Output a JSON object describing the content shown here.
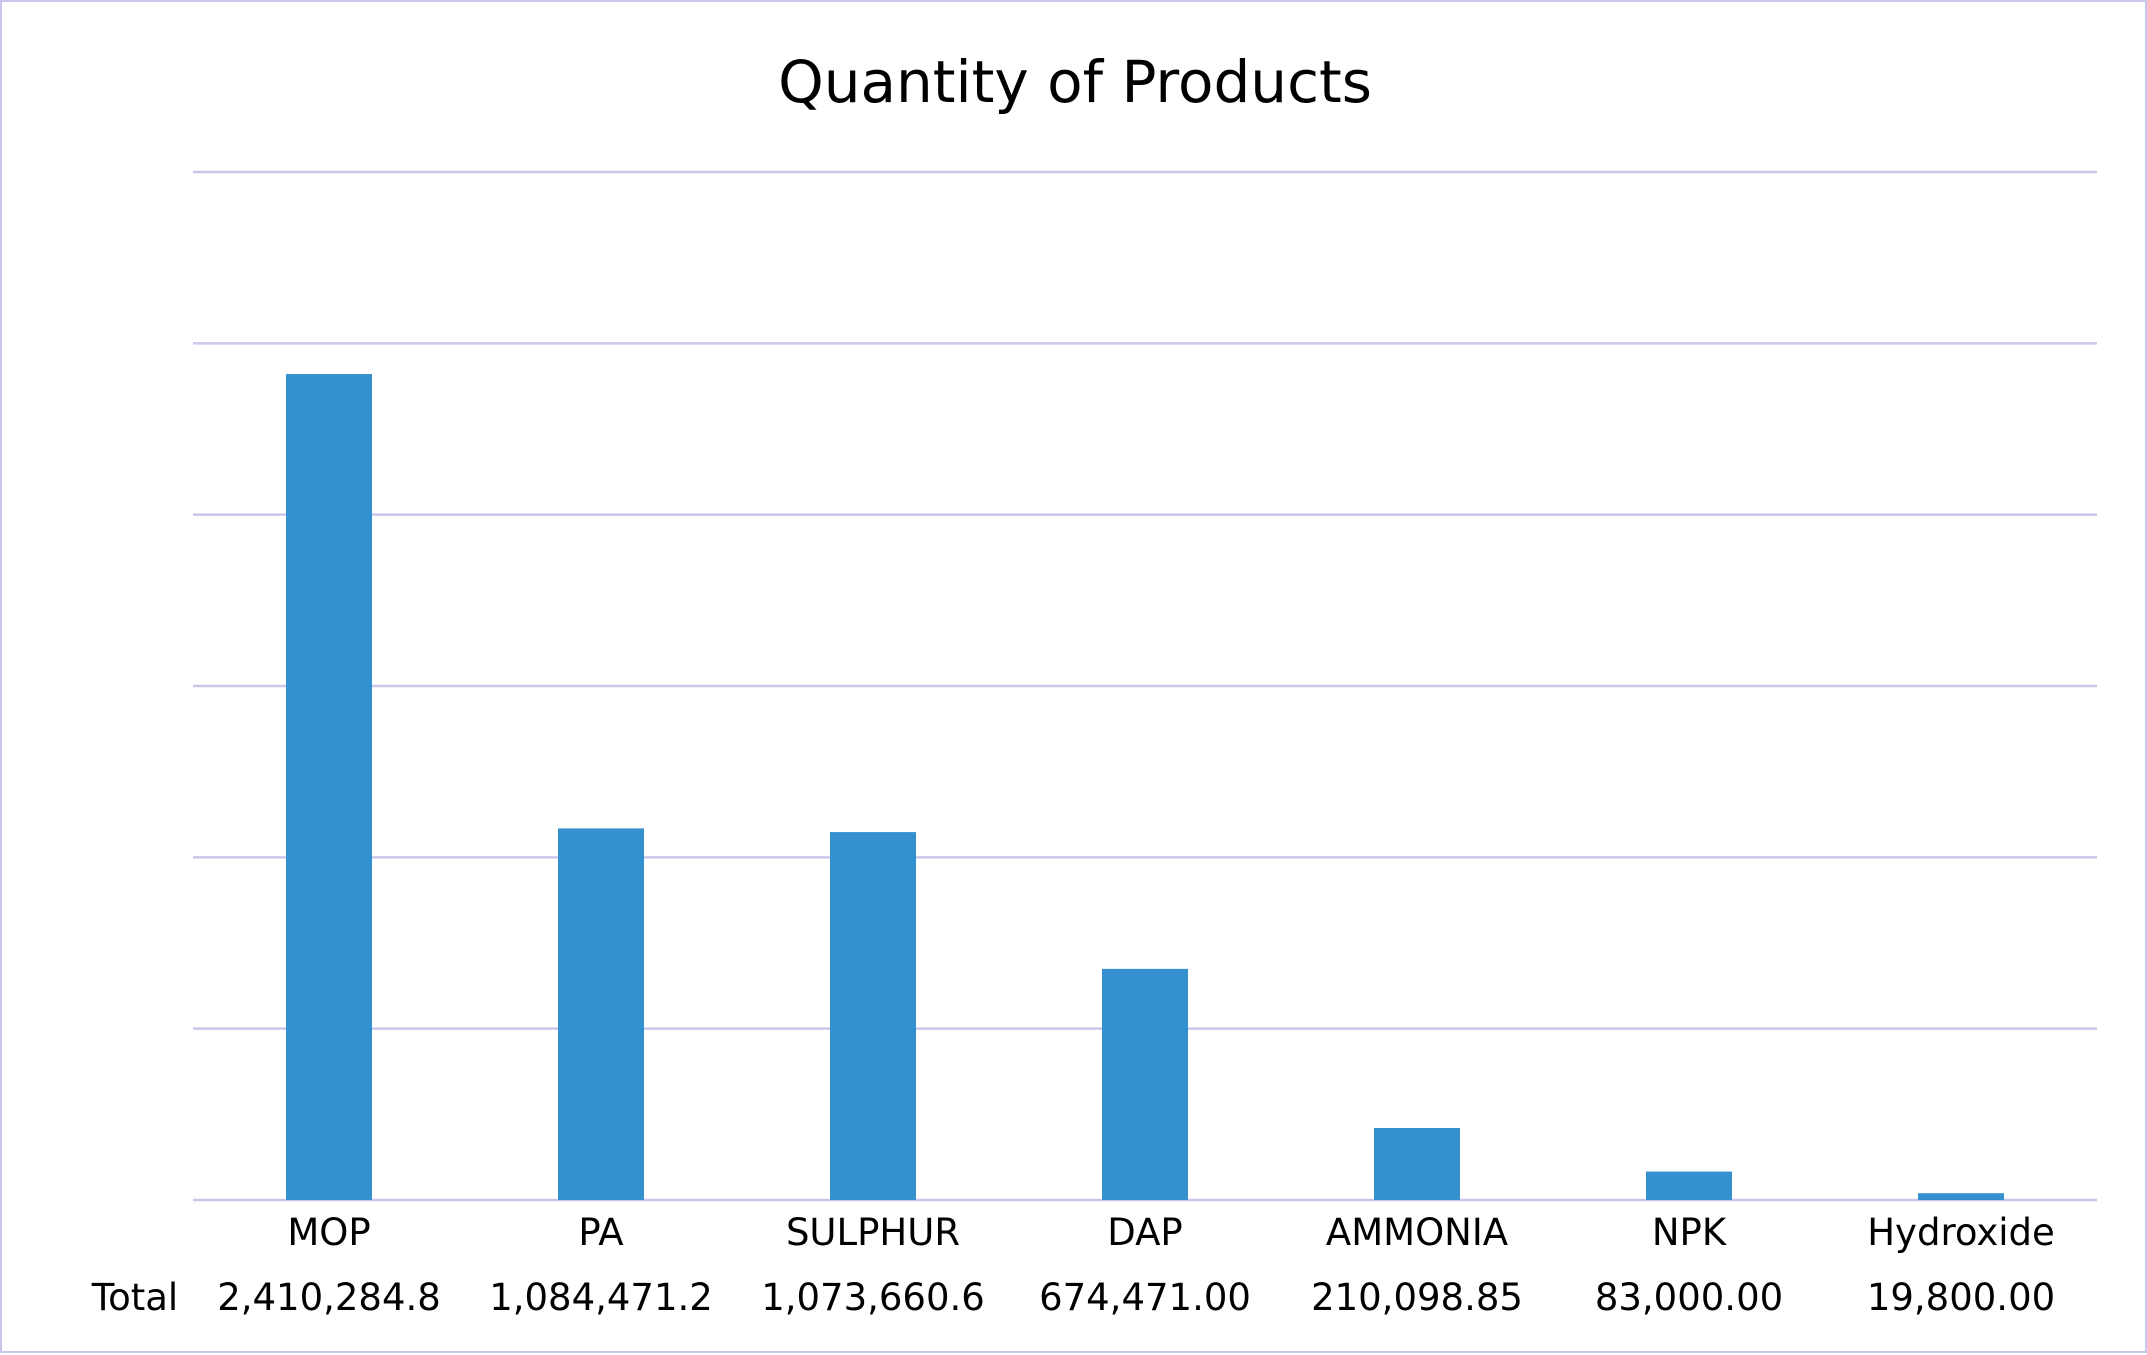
{
  "chart_data": {
    "type": "bar",
    "title": "Quantity of Products",
    "table_row_label": "Total",
    "categories": [
      "MOP",
      "PA",
      "SULPHUR",
      "DAP",
      "AMMONIA",
      "NPK",
      "Hydroxide"
    ],
    "values": [
      2410284.8,
      1084471.2,
      1073660.6,
      674471.0,
      210098.85,
      83000.0,
      19800.0
    ],
    "value_labels": [
      "2,410,284.8",
      "1,084,471.2",
      "1,073,660.6",
      "674,471.00",
      "210,098.85",
      "83,000.00",
      "19,800.00"
    ],
    "ylim": [
      0,
      3000000
    ],
    "gridlines": [
      0,
      500000,
      1000000,
      1500000,
      2000000,
      2500000,
      3000000
    ],
    "grid": true,
    "bar_color": "#3590cf",
    "grid_color": "#c8c8ec",
    "xlabel": "",
    "ylabel": ""
  }
}
